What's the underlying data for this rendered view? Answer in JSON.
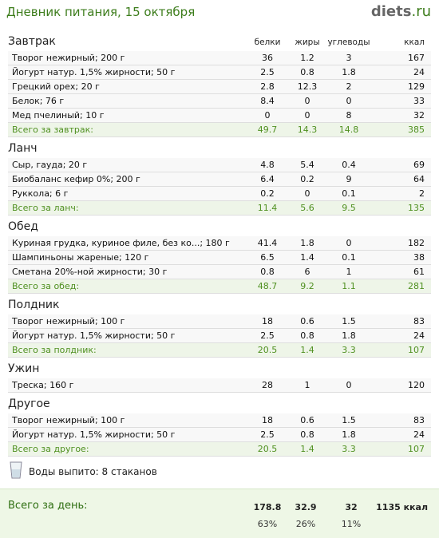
{
  "header": {
    "title": "Дневник питания, 15 октября",
    "logo_main": "diets",
    "logo_suffix": ".ru"
  },
  "columns": [
    "белки",
    "жиры",
    "углеводы",
    "ккал"
  ],
  "sections": [
    {
      "title": "Завтрак",
      "rows": [
        [
          "Творог нежирный; 200 г",
          "36",
          "1.2",
          "3",
          "167"
        ],
        [
          "Йогурт натур. 1,5% жирности; 50 г",
          "2.5",
          "0.8",
          "1.8",
          "24"
        ],
        [
          "Грецкий орех; 20 г",
          "2.8",
          "12.3",
          "2",
          "129"
        ],
        [
          "Белок; 76 г",
          "8.4",
          "0",
          "0",
          "33"
        ],
        [
          "Мед пчелиный; 10 г",
          "0",
          "0",
          "8",
          "32"
        ]
      ],
      "total": [
        "Всего за завтрак:",
        "49.7",
        "14.3",
        "14.8",
        "385"
      ]
    },
    {
      "title": "Ланч",
      "rows": [
        [
          "Сыр, гауда; 20 г",
          "4.8",
          "5.4",
          "0.4",
          "69"
        ],
        [
          "Биобаланс кефир 0%; 200 г",
          "6.4",
          "0.2",
          "9",
          "64"
        ],
        [
          "Руккола; 6 г",
          "0.2",
          "0",
          "0.1",
          "2"
        ]
      ],
      "total": [
        "Всего за ланч:",
        "11.4",
        "5.6",
        "9.5",
        "135"
      ]
    },
    {
      "title": "Обед",
      "rows": [
        [
          "Куриная грудка, куриное филе, без ко...; 180 г",
          "41.4",
          "1.8",
          "0",
          "182"
        ],
        [
          "Шампиньоны жареные; 120 г",
          "6.5",
          "1.4",
          "0.1",
          "38"
        ],
        [
          "Сметана 20%-ной жирности; 30 г",
          "0.8",
          "6",
          "1",
          "61"
        ]
      ],
      "total": [
        "Всего за обед:",
        "48.7",
        "9.2",
        "1.1",
        "281"
      ]
    },
    {
      "title": "Полдник",
      "rows": [
        [
          "Творог нежирный; 100 г",
          "18",
          "0.6",
          "1.5",
          "83"
        ],
        [
          "Йогурт натур. 1,5% жирности; 50 г",
          "2.5",
          "0.8",
          "1.8",
          "24"
        ]
      ],
      "total": [
        "Всего за полдник:",
        "20.5",
        "1.4",
        "3.3",
        "107"
      ]
    },
    {
      "title": "Ужин",
      "rows": [
        [
          "Треска; 160 г",
          "28",
          "1",
          "0",
          "120"
        ]
      ]
    },
    {
      "title": "Другое",
      "rows": [
        [
          "Творог нежирный; 100 г",
          "18",
          "0.6",
          "1.5",
          "83"
        ],
        [
          "Йогурт натур. 1,5% жирности; 50 г",
          "2.5",
          "0.8",
          "1.8",
          "24"
        ]
      ],
      "total": [
        "Всего за другое:",
        "20.5",
        "1.4",
        "3.3",
        "107"
      ]
    }
  ],
  "water": "Воды выпито: 8 стаканов",
  "day_total": {
    "label": "Всего за день:",
    "values": [
      "178.8",
      "32.9",
      "32",
      "1135 ккал"
    ],
    "percents": [
      "63%",
      "26%",
      "11%"
    ]
  }
}
